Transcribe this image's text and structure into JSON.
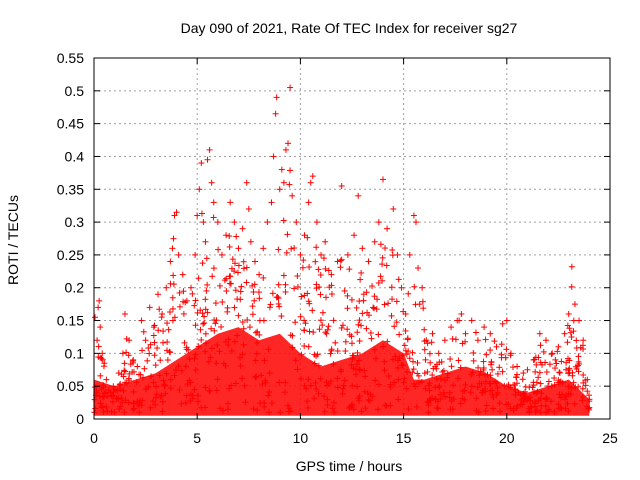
{
  "chart_data": {
    "type": "scatter",
    "title": "Day 090 of 2021, Rate Of TEC Index for receiver sg27",
    "xlabel": "GPS time / hours",
    "ylabel": "ROTI / TECUs",
    "xlim": [
      0,
      25
    ],
    "ylim": [
      0,
      0.55
    ],
    "x_ticks": [
      "0",
      "5",
      "10",
      "15",
      "20",
      "25"
    ],
    "y_ticks": [
      "0",
      "0.05",
      "0.1",
      "0.15",
      "0.2",
      "0.25",
      "0.3",
      "0.35",
      "0.4",
      "0.45",
      "0.5",
      "0.55"
    ],
    "grid": true,
    "marker": "+",
    "color": "#ff0000",
    "series": [
      {
        "points": [
          [
            0.05,
            0.155
          ],
          [
            0.15,
            0.12
          ],
          [
            0.2,
            0.17
          ],
          [
            0.25,
            0.18
          ],
          [
            0.3,
            0.14
          ],
          [
            0.4,
            0.1
          ],
          [
            0.5,
            0.085
          ],
          [
            0.6,
            0.06
          ],
          [
            0.8,
            0.04
          ],
          [
            1.0,
            0.045
          ],
          [
            1.2,
            0.07
          ],
          [
            1.4,
            0.1
          ],
          [
            1.5,
            0.16
          ],
          [
            1.7,
            0.12
          ],
          [
            1.9,
            0.09
          ],
          [
            2.1,
            0.08
          ],
          [
            2.3,
            0.15
          ],
          [
            2.5,
            0.12
          ],
          [
            2.7,
            0.17
          ],
          [
            2.9,
            0.14
          ],
          [
            3.1,
            0.19
          ],
          [
            3.3,
            0.16
          ],
          [
            3.5,
            0.2
          ],
          [
            3.7,
            0.24
          ],
          [
            3.8,
            0.26
          ],
          [
            3.9,
            0.31
          ],
          [
            4.0,
            0.315
          ],
          [
            4.1,
            0.25
          ],
          [
            4.3,
            0.22
          ],
          [
            4.5,
            0.18
          ],
          [
            4.7,
            0.2
          ],
          [
            4.9,
            0.25
          ],
          [
            5.0,
            0.31
          ],
          [
            5.1,
            0.35
          ],
          [
            5.2,
            0.39
          ],
          [
            5.3,
            0.3
          ],
          [
            5.4,
            0.27
          ],
          [
            5.5,
            0.395
          ],
          [
            5.6,
            0.41
          ],
          [
            5.7,
            0.36
          ],
          [
            5.8,
            0.33
          ],
          [
            6.0,
            0.3
          ],
          [
            6.2,
            0.25
          ],
          [
            6.4,
            0.28
          ],
          [
            6.6,
            0.33
          ],
          [
            6.8,
            0.3
          ],
          [
            7.0,
            0.26
          ],
          [
            7.2,
            0.29
          ],
          [
            7.4,
            0.36
          ],
          [
            7.5,
            0.32
          ],
          [
            7.6,
            0.27
          ],
          [
            7.8,
            0.24
          ],
          [
            8.0,
            0.22
          ],
          [
            8.2,
            0.26
          ],
          [
            8.4,
            0.3
          ],
          [
            8.6,
            0.33
          ],
          [
            8.7,
            0.4
          ],
          [
            8.8,
            0.465
          ],
          [
            8.85,
            0.49
          ],
          [
            9.0,
            0.35
          ],
          [
            9.1,
            0.38
          ],
          [
            9.2,
            0.36
          ],
          [
            9.3,
            0.41
          ],
          [
            9.4,
            0.42
          ],
          [
            9.5,
            0.505
          ],
          [
            9.6,
            0.34
          ],
          [
            9.8,
            0.3
          ],
          [
            10.0,
            0.25
          ],
          [
            10.2,
            0.28
          ],
          [
            10.4,
            0.33
          ],
          [
            10.5,
            0.36
          ],
          [
            10.6,
            0.37
          ],
          [
            10.8,
            0.3
          ],
          [
            11.0,
            0.25
          ],
          [
            11.2,
            0.27
          ],
          [
            11.5,
            0.22
          ],
          [
            11.8,
            0.24
          ],
          [
            12.0,
            0.355
          ],
          [
            12.3,
            0.25
          ],
          [
            12.6,
            0.28
          ],
          [
            12.8,
            0.34
          ],
          [
            13.0,
            0.26
          ],
          [
            13.3,
            0.24
          ],
          [
            13.6,
            0.27
          ],
          [
            13.8,
            0.3
          ],
          [
            14.0,
            0.365
          ],
          [
            14.2,
            0.29
          ],
          [
            14.5,
            0.32
          ],
          [
            14.7,
            0.25
          ],
          [
            14.9,
            0.2
          ],
          [
            15.1,
            0.16
          ],
          [
            15.3,
            0.25
          ],
          [
            15.5,
            0.31
          ],
          [
            15.6,
            0.3
          ],
          [
            15.7,
            0.23
          ],
          [
            15.9,
            0.2
          ],
          [
            16.1,
            0.12
          ],
          [
            16.4,
            0.13
          ],
          [
            16.7,
            0.1
          ],
          [
            17.0,
            0.12
          ],
          [
            17.3,
            0.14
          ],
          [
            17.6,
            0.15
          ],
          [
            17.8,
            0.16
          ],
          [
            18.0,
            0.13
          ],
          [
            18.3,
            0.15
          ],
          [
            18.6,
            0.12
          ],
          [
            18.9,
            0.14
          ],
          [
            19.2,
            0.13
          ],
          [
            19.5,
            0.11
          ],
          [
            19.8,
            0.145
          ],
          [
            20.0,
            0.15
          ],
          [
            20.2,
            0.1
          ],
          [
            20.5,
            0.08
          ],
          [
            20.8,
            0.07
          ],
          [
            21.0,
            0.075
          ],
          [
            21.3,
            0.09
          ],
          [
            21.6,
            0.13
          ],
          [
            21.9,
            0.12
          ],
          [
            22.2,
            0.1
          ],
          [
            22.5,
            0.11
          ],
          [
            22.8,
            0.13
          ],
          [
            23.0,
            0.16
          ],
          [
            23.15,
            0.232
          ],
          [
            23.3,
            0.175
          ],
          [
            23.5,
            0.15
          ],
          [
            23.7,
            0.12
          ],
          [
            23.9,
            0.06
          ],
          [
            24.0,
            0.03
          ]
        ]
      }
    ]
  }
}
